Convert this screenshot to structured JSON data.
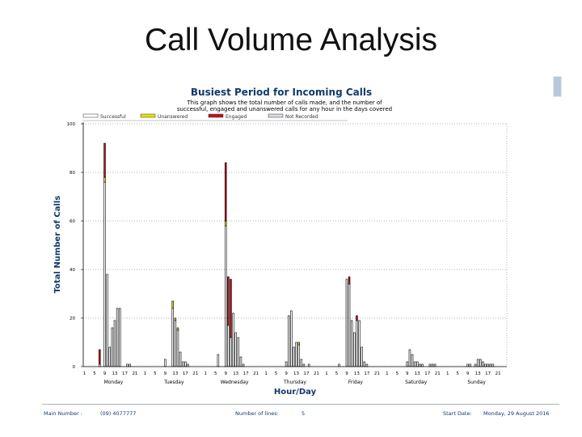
{
  "slide": {
    "title": "Call Volume Analysis"
  },
  "report": {
    "title": "Busiest Period for Incoming Calls",
    "subtitle_line1": "This graph shows the total number of calls made, and the number of",
    "subtitle_line2": "successful, engaged and unanswered calls for any hour in the days covered"
  },
  "colors": {
    "successful": "#ffffff",
    "unanswered": "#e6e200",
    "engaged": "#c0141c",
    "not_recorded": "#d9dde3",
    "axis_title": "#123a6a"
  },
  "footer": {
    "main_number_label": "Main Number :",
    "main_number_value": "(09) 4077777",
    "number_of_lines_label": "Number of lines:",
    "number_of_lines_value": "5",
    "start_date_label": "Start Date:",
    "start_date_value": "Monday, 29 August 2016"
  },
  "chart_data": {
    "type": "bar",
    "title": "Busiest Period for Incoming Calls",
    "xlabel": "Hour/Day",
    "ylabel": "Total Number of Calls",
    "ylim": [
      0,
      100
    ],
    "yticks": [
      0,
      20,
      40,
      60,
      80,
      100
    ],
    "grid": true,
    "legend_position": "top",
    "stacked": true,
    "days": [
      "Monday",
      "Tuesday",
      "Wednesday",
      "Thursday",
      "Friday",
      "Saturday",
      "Sunday"
    ],
    "hour_tick_labels": [
      "1",
      "5",
      "9",
      "13",
      "17",
      "21"
    ],
    "hours": [
      0,
      1,
      2,
      3,
      4,
      5,
      6,
      7,
      8,
      9,
      10,
      11,
      12,
      13,
      14,
      15,
      16,
      17,
      18,
      19,
      20,
      21,
      22,
      23
    ],
    "series": [
      {
        "name": "Successful",
        "values": [
          [
            0,
            0,
            0,
            0,
            0,
            0,
            1,
            0,
            76,
            38,
            8,
            16,
            19,
            24,
            24,
            0,
            0,
            1,
            1,
            0,
            0,
            0,
            0,
            0
          ],
          [
            0,
            0,
            0,
            0,
            0,
            0,
            0,
            0,
            3,
            0,
            0,
            24,
            19,
            15,
            6,
            2,
            2,
            1,
            0,
            0,
            0,
            0,
            0,
            0
          ],
          [
            0,
            0,
            0,
            0,
            0,
            5,
            0,
            0,
            58,
            17,
            12,
            22,
            14,
            12,
            4,
            1,
            0,
            0,
            0,
            0,
            0,
            0,
            0,
            0
          ],
          [
            0,
            0,
            0,
            0,
            0,
            0,
            0,
            0,
            2,
            21,
            23,
            8,
            10,
            9,
            3,
            1,
            0,
            1,
            0,
            0,
            0,
            0,
            0,
            0
          ],
          [
            0,
            0,
            0,
            0,
            0,
            1,
            0,
            0,
            36,
            34,
            19,
            14,
            19,
            19,
            8,
            2,
            1,
            0,
            0,
            0,
            0,
            0,
            0,
            0
          ],
          [
            0,
            0,
            0,
            0,
            0,
            0,
            0,
            0,
            2,
            7,
            5,
            2,
            2,
            1,
            1,
            0,
            0,
            1,
            1,
            1,
            0,
            0,
            0,
            0
          ],
          [
            0,
            0,
            0,
            0,
            0,
            0,
            0,
            0,
            1,
            1,
            0,
            1,
            3,
            3,
            2,
            1,
            1,
            1,
            1,
            0,
            0,
            0,
            0,
            0
          ]
        ]
      },
      {
        "name": "Unanswered",
        "values": [
          [
            0,
            0,
            0,
            0,
            0,
            0,
            0,
            0,
            2,
            0,
            0,
            0,
            0,
            0,
            0,
            0,
            0,
            0,
            0,
            0,
            0,
            0,
            0,
            0
          ],
          [
            0,
            0,
            0,
            0,
            0,
            0,
            0,
            0,
            0,
            0,
            0,
            3,
            1,
            1,
            0,
            0,
            0,
            0,
            0,
            0,
            0,
            0,
            0,
            0
          ],
          [
            0,
            0,
            0,
            0,
            0,
            0,
            0,
            0,
            2,
            0,
            0,
            0,
            0,
            0,
            0,
            0,
            0,
            0,
            0,
            0,
            0,
            0,
            0,
            0
          ],
          [
            0,
            0,
            0,
            0,
            0,
            0,
            0,
            0,
            0,
            0,
            0,
            0,
            0,
            1,
            0,
            0,
            0,
            0,
            0,
            0,
            0,
            0,
            0,
            0
          ],
          [
            0,
            0,
            0,
            0,
            0,
            0,
            0,
            0,
            0,
            0,
            0,
            0,
            0,
            0,
            0,
            0,
            0,
            0,
            0,
            0,
            0,
            0,
            0,
            0
          ],
          [
            0,
            0,
            0,
            0,
            0,
            0,
            0,
            0,
            0,
            0,
            0,
            0,
            0,
            0,
            0,
            0,
            0,
            0,
            0,
            0,
            0,
            0,
            0,
            0
          ],
          [
            0,
            0,
            0,
            0,
            0,
            0,
            0,
            0,
            0,
            0,
            0,
            0,
            0,
            0,
            0,
            0,
            0,
            0,
            0,
            0,
            0,
            0,
            0,
            0
          ]
        ]
      },
      {
        "name": "Engaged",
        "values": [
          [
            0,
            0,
            0,
            0,
            0,
            0,
            6,
            0,
            14,
            0,
            0,
            0,
            0,
            0,
            0,
            0,
            0,
            0,
            0,
            0,
            0,
            0,
            0,
            0
          ],
          [
            0,
            0,
            0,
            0,
            0,
            0,
            0,
            0,
            0,
            0,
            0,
            0,
            0,
            0,
            0,
            0,
            0,
            0,
            0,
            0,
            0,
            0,
            0,
            0
          ],
          [
            0,
            0,
            0,
            0,
            0,
            0,
            0,
            0,
            24,
            20,
            24,
            0,
            0,
            0,
            0,
            0,
            0,
            0,
            0,
            0,
            0,
            0,
            0,
            0
          ],
          [
            0,
            0,
            0,
            0,
            0,
            0,
            0,
            0,
            0,
            0,
            0,
            0,
            0,
            0,
            0,
            0,
            0,
            0,
            0,
            0,
            0,
            0,
            0,
            0
          ],
          [
            0,
            0,
            0,
            0,
            0,
            0,
            0,
            0,
            0,
            3,
            0,
            0,
            2,
            0,
            0,
            0,
            0,
            0,
            0,
            0,
            0,
            0,
            0,
            0
          ],
          [
            0,
            0,
            0,
            0,
            0,
            0,
            0,
            0,
            0,
            0,
            0,
            0,
            0,
            0,
            0,
            0,
            0,
            0,
            0,
            0,
            0,
            0,
            0,
            0
          ],
          [
            0,
            0,
            0,
            0,
            0,
            0,
            0,
            0,
            0,
            0,
            0,
            0,
            0,
            0,
            0,
            0,
            0,
            0,
            0,
            0,
            0,
            0,
            0,
            0
          ]
        ]
      },
      {
        "name": "Not Recorded",
        "values": [
          [
            0,
            0,
            0,
            0,
            0,
            0,
            0,
            0,
            0,
            0,
            0,
            0,
            0,
            0,
            0,
            0,
            0,
            0,
            0,
            0,
            0,
            0,
            0,
            0
          ],
          [
            0,
            0,
            0,
            0,
            0,
            0,
            0,
            0,
            0,
            0,
            0,
            0,
            0,
            0,
            0,
            0,
            0,
            0,
            0,
            0,
            0,
            0,
            0,
            0
          ],
          [
            0,
            0,
            0,
            0,
            0,
            0,
            0,
            0,
            0,
            0,
            0,
            0,
            0,
            0,
            0,
            0,
            0,
            0,
            0,
            0,
            0,
            0,
            0,
            0
          ],
          [
            0,
            0,
            0,
            0,
            0,
            0,
            0,
            0,
            0,
            0,
            0,
            0,
            0,
            0,
            0,
            0,
            0,
            0,
            0,
            0,
            0,
            0,
            0,
            0
          ],
          [
            0,
            0,
            0,
            0,
            0,
            0,
            0,
            0,
            0,
            0,
            0,
            0,
            0,
            0,
            0,
            0,
            0,
            0,
            0,
            0,
            0,
            0,
            0,
            0
          ],
          [
            0,
            0,
            0,
            0,
            0,
            0,
            0,
            0,
            0,
            0,
            0,
            0,
            0,
            0,
            0,
            0,
            0,
            0,
            0,
            0,
            0,
            0,
            0,
            0
          ],
          [
            0,
            0,
            0,
            0,
            0,
            0,
            0,
            0,
            0,
            0,
            0,
            0,
            0,
            0,
            0,
            0,
            0,
            0,
            0,
            0,
            0,
            0,
            0,
            0
          ]
        ]
      }
    ]
  }
}
